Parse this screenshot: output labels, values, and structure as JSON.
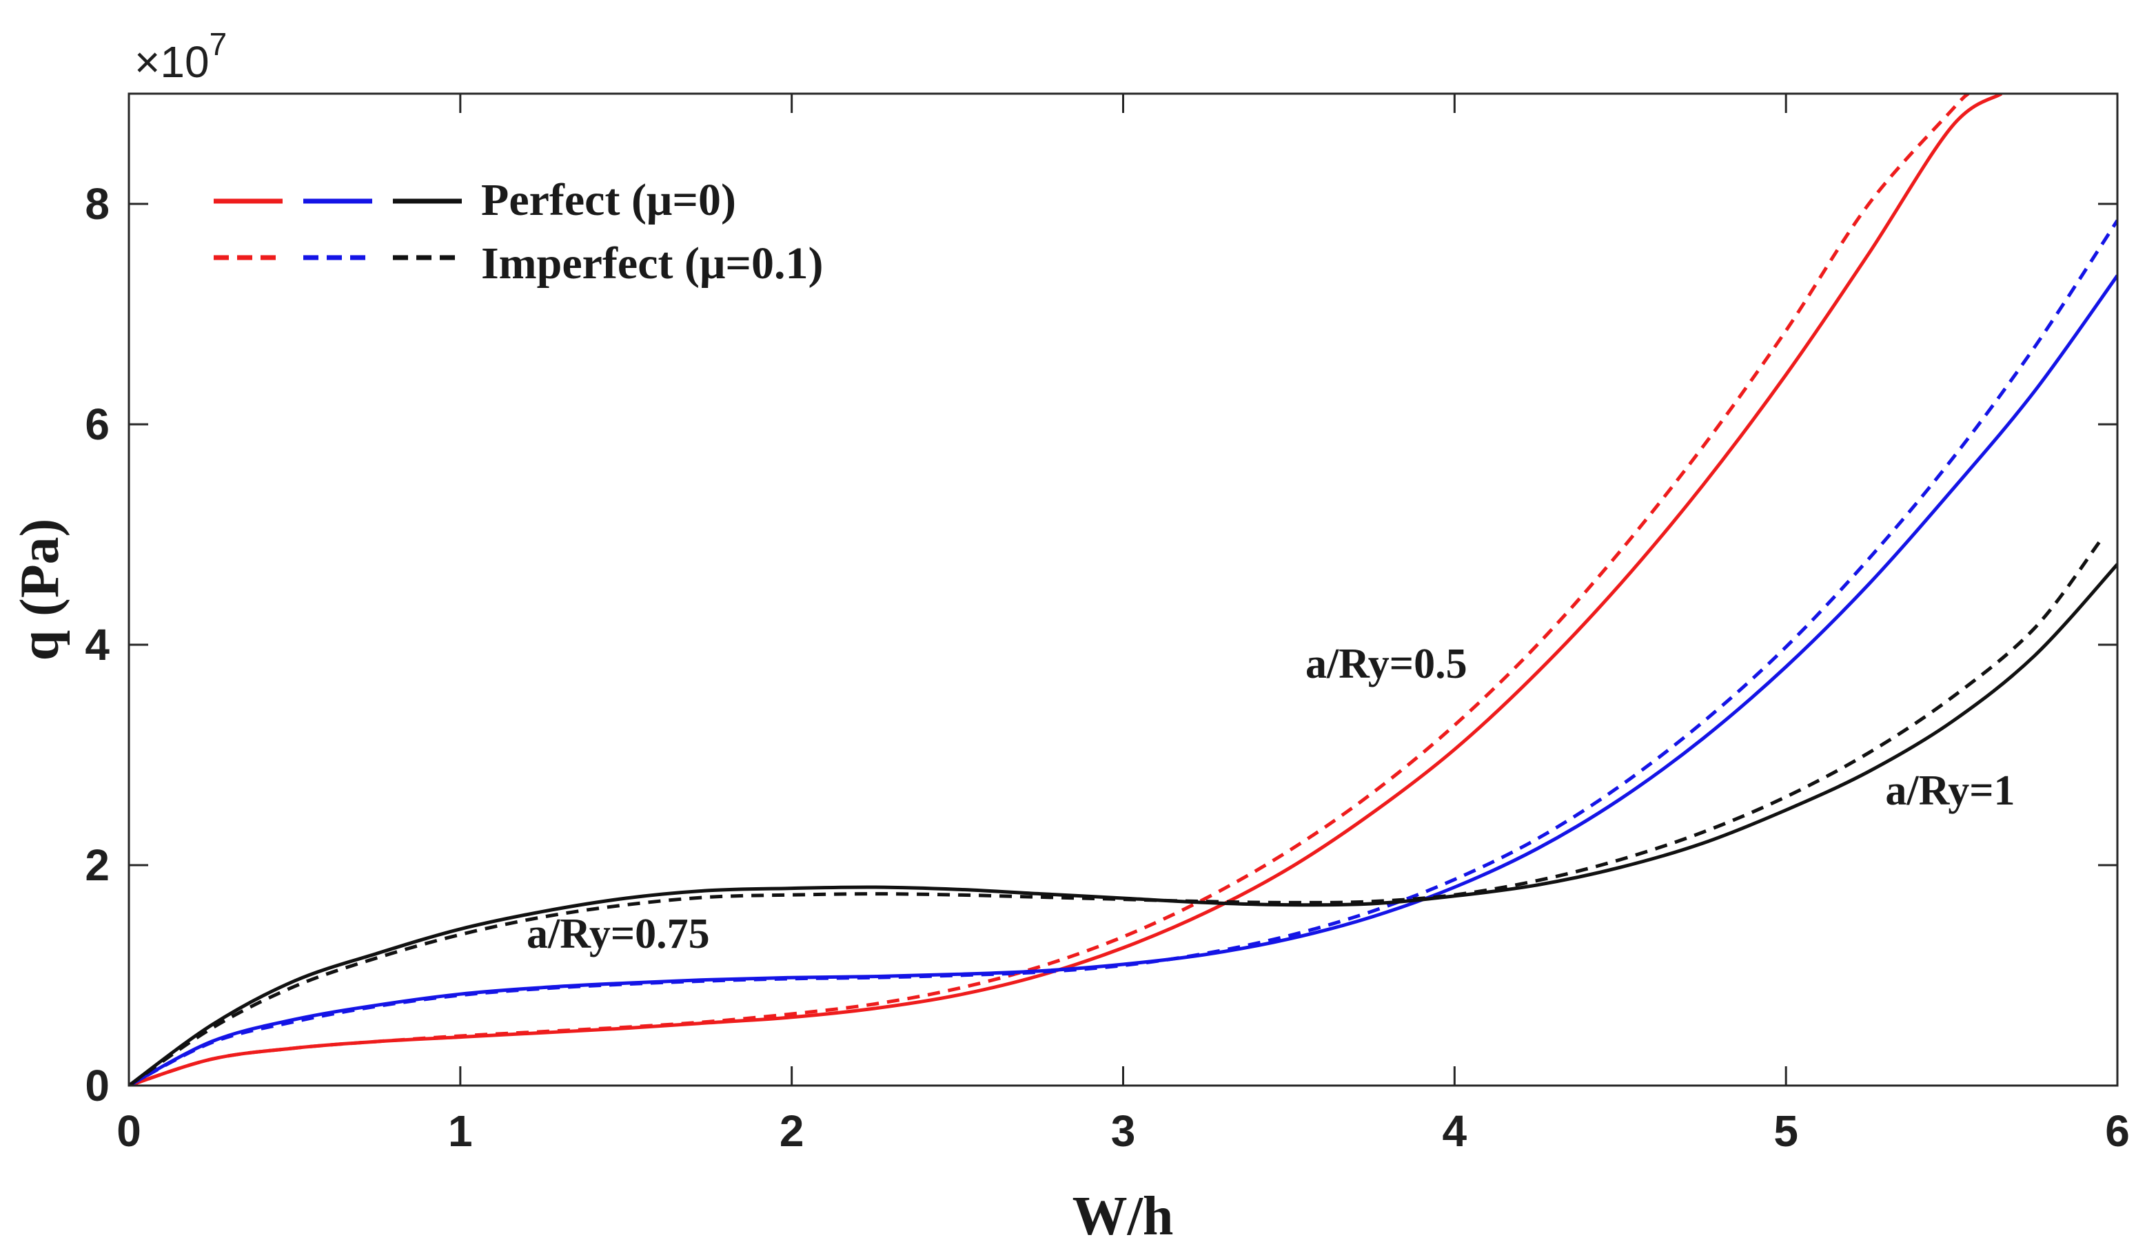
{
  "chart_data": {
    "type": "line",
    "title": "",
    "xlabel": "W/h",
    "ylabel": "q (Pa)",
    "y_scale_label": "×10",
    "y_scale_exponent": "7",
    "xlim": [
      0,
      6
    ],
    "ylim": [
      0,
      9
    ],
    "xticks": [
      0,
      1,
      2,
      3,
      4,
      5,
      6
    ],
    "yticks": [
      0,
      2,
      4,
      6,
      8
    ],
    "xtick_labels": [
      "0",
      "1",
      "2",
      "3",
      "4",
      "5",
      "6"
    ],
    "ytick_labels": [
      "0",
      "2",
      "4",
      "6",
      "8"
    ],
    "grid": false,
    "colors": {
      "red": "#ee1c1c",
      "blue": "#1414e6",
      "black": "#111111"
    },
    "legend": {
      "position": "top-left",
      "entries": [
        {
          "label": "Perfect (μ=0)",
          "style": "solid",
          "colors": [
            "red",
            "blue",
            "black"
          ]
        },
        {
          "label": "Imperfect (μ=0.1)",
          "style": "dashed",
          "colors": [
            "red",
            "blue",
            "black"
          ]
        }
      ]
    },
    "annotations": [
      {
        "text": "a/Ry=0.5",
        "x": 3.55,
        "y": 3.7
      },
      {
        "text": "a/Ry=0.75",
        "x": 1.2,
        "y": 1.25
      },
      {
        "text": "a/Ry=1",
        "x": 5.3,
        "y": 2.55
      }
    ],
    "series": [
      {
        "name": "a/Ry=0.5 Perfect (μ=0)",
        "color": "red",
        "style": "solid",
        "x": [
          0,
          0.25,
          0.5,
          0.75,
          1,
          1.25,
          1.5,
          1.75,
          2,
          2.25,
          2.5,
          2.75,
          3,
          3.25,
          3.5,
          3.75,
          4,
          4.25,
          4.5,
          4.75,
          5,
          5.25,
          5.5,
          5.65
        ],
        "y": [
          0,
          0.24,
          0.34,
          0.4,
          0.44,
          0.48,
          0.52,
          0.57,
          0.62,
          0.7,
          0.82,
          1.0,
          1.25,
          1.57,
          1.97,
          2.47,
          3.05,
          3.75,
          4.55,
          5.45,
          6.45,
          7.55,
          8.7,
          9.0
        ]
      },
      {
        "name": "a/Ry=0.5 Imperfect (μ=0.1)",
        "color": "red",
        "style": "dashed",
        "x": [
          0,
          0.25,
          0.5,
          0.75,
          1,
          1.25,
          1.5,
          1.75,
          2,
          2.25,
          2.5,
          2.75,
          3,
          3.25,
          3.5,
          3.75,
          4,
          4.25,
          4.5,
          4.75,
          5,
          5.25,
          5.5,
          5.55
        ],
        "y": [
          0,
          0.24,
          0.34,
          0.4,
          0.45,
          0.49,
          0.53,
          0.58,
          0.65,
          0.74,
          0.88,
          1.08,
          1.35,
          1.7,
          2.13,
          2.65,
          3.27,
          4.0,
          4.85,
          5.8,
          6.85,
          8.0,
          8.85,
          9.0
        ]
      },
      {
        "name": "a/Ry=0.75 Perfect (μ=0)",
        "color": "blue",
        "style": "solid",
        "x": [
          0,
          0.25,
          0.5,
          0.75,
          1,
          1.25,
          1.5,
          1.75,
          2,
          2.25,
          2.5,
          2.75,
          3,
          3.25,
          3.5,
          3.75,
          4,
          4.25,
          4.5,
          4.75,
          5,
          5.25,
          5.5,
          5.75,
          6
        ],
        "y": [
          0,
          0.4,
          0.6,
          0.73,
          0.83,
          0.89,
          0.93,
          0.96,
          0.98,
          0.99,
          1.01,
          1.04,
          1.1,
          1.19,
          1.33,
          1.53,
          1.8,
          2.15,
          2.6,
          3.15,
          3.8,
          4.55,
          5.4,
          6.3,
          7.35
        ]
      },
      {
        "name": "a/Ry=0.75 Imperfect (μ=0.1)",
        "color": "blue",
        "style": "dashed",
        "x": [
          0,
          0.25,
          0.5,
          0.75,
          1,
          1.25,
          1.5,
          1.75,
          2,
          2.25,
          2.5,
          2.75,
          3,
          3.25,
          3.5,
          3.75,
          4,
          4.25,
          4.5,
          4.75,
          5,
          5.25,
          5.5,
          5.75,
          6
        ],
        "y": [
          0,
          0.39,
          0.58,
          0.72,
          0.82,
          0.88,
          0.92,
          0.95,
          0.97,
          0.98,
          1.0,
          1.03,
          1.09,
          1.2,
          1.36,
          1.58,
          1.87,
          2.24,
          2.72,
          3.3,
          3.98,
          4.78,
          5.68,
          6.7,
          7.85
        ]
      },
      {
        "name": "a/Ry=1 Perfect (μ=0)",
        "color": "black",
        "style": "solid",
        "x": [
          0,
          0.25,
          0.5,
          0.75,
          1,
          1.25,
          1.5,
          1.75,
          2,
          2.25,
          2.5,
          2.75,
          3,
          3.25,
          3.5,
          3.75,
          4,
          4.25,
          4.5,
          4.75,
          5,
          5.25,
          5.5,
          5.75,
          6
        ],
        "y": [
          0,
          0.55,
          0.95,
          1.2,
          1.42,
          1.58,
          1.7,
          1.77,
          1.79,
          1.8,
          1.78,
          1.74,
          1.7,
          1.66,
          1.64,
          1.65,
          1.72,
          1.82,
          1.98,
          2.2,
          2.5,
          2.85,
          3.3,
          3.9,
          4.73
        ]
      },
      {
        "name": "a/Ry=1 Imperfect (μ=0.1)",
        "color": "black",
        "style": "dashed",
        "x": [
          0,
          0.25,
          0.5,
          0.75,
          1,
          1.25,
          1.5,
          1.75,
          2,
          2.25,
          2.5,
          2.75,
          3,
          3.25,
          3.5,
          3.75,
          4,
          4.25,
          4.5,
          4.75,
          5,
          5.25,
          5.5,
          5.75,
          5.95
        ],
        "y": [
          0,
          0.52,
          0.9,
          1.16,
          1.37,
          1.53,
          1.64,
          1.71,
          1.73,
          1.74,
          1.73,
          1.71,
          1.69,
          1.67,
          1.66,
          1.67,
          1.73,
          1.86,
          2.05,
          2.3,
          2.62,
          3.02,
          3.52,
          4.15,
          4.95
        ]
      }
    ]
  }
}
